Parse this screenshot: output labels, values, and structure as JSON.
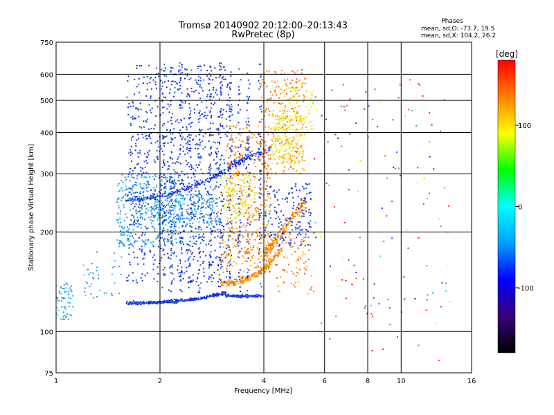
{
  "chart_data": {
    "type": "scatter",
    "title": "Tromsø 20140902 20:12:00–20:13:43",
    "subtitle": "RwPretec (8p)",
    "xlabel": "Frequency [MHz]",
    "ylabel": "Stationary phase Virtual Height [km]",
    "x_scale": "log",
    "y_scale": "log",
    "xlim": [
      1,
      16
    ],
    "ylim": [
      75,
      750
    ],
    "x_ticks": [
      1,
      2,
      4,
      6,
      8,
      10,
      16
    ],
    "x_tick_labels": [
      "1",
      "2",
      "4",
      "6",
      "8",
      "10",
      "16"
    ],
    "x_gridlines": [
      2,
      4,
      6,
      8,
      10
    ],
    "y_ticks": [
      75,
      100,
      200,
      300,
      400,
      500,
      600,
      750
    ],
    "y_tick_labels": [
      "75",
      "100",
      "200",
      "300",
      "400",
      "500",
      "600",
      "750"
    ],
    "y_gridlines": [
      100,
      200,
      300,
      400,
      500,
      600
    ],
    "grid": true,
    "legend": "none",
    "phase_info": {
      "title": "Phases",
      "line1": "mean, sd,O: -73.7, 19.5",
      "line2": "mean, sd,X: 104.2, 26.2"
    },
    "colorbar": {
      "label": "[deg]",
      "range": [
        -180,
        180
      ],
      "ticks": [
        100,
        0,
        -100
      ],
      "tick_labels": [
        "100",
        "0",
        "-100"
      ],
      "colors": [
        "#000000",
        "#3a007a",
        "#0000ff",
        "#00a0ff",
        "#00ffff",
        "#00ff00",
        "#ffff00",
        "#ff8000",
        "#ff0000"
      ]
    },
    "trace_colors": {
      "o_trace": "#1030e0",
      "x_trace": "#ff7a00",
      "scatter_low": "#20a8f0",
      "scatter_high": "#ffe000"
    }
  }
}
